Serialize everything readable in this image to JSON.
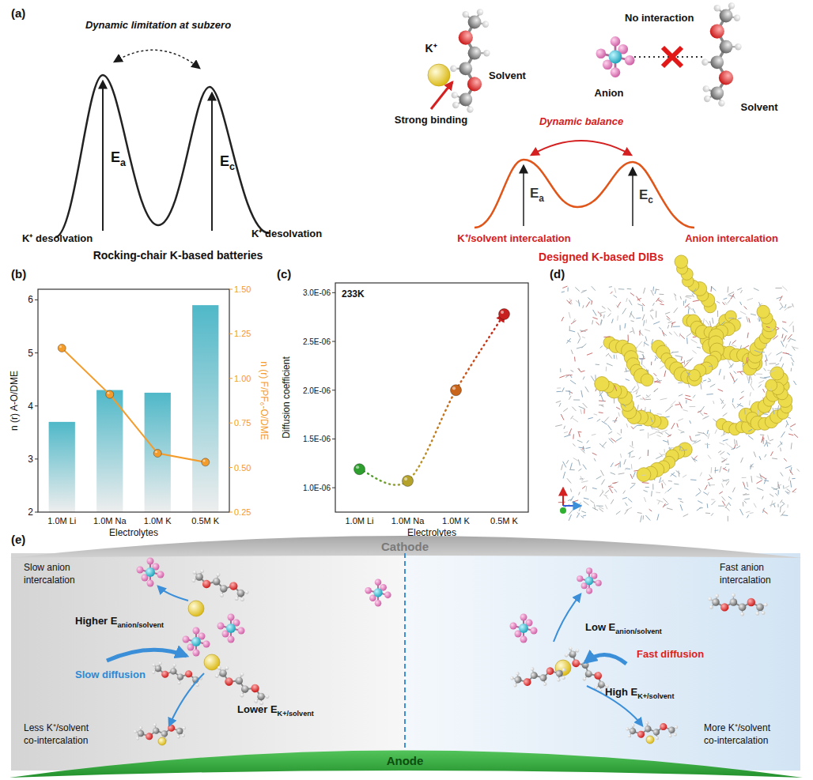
{
  "panels": {
    "a": {
      "label": "(a)",
      "rocking_chair": {
        "caption": "Dynamic limitation at subzero",
        "barrier_anode": {
          "symbol": "E",
          "sub": "a"
        },
        "barrier_cathode": {
          "symbol": "E",
          "sub": "c"
        },
        "left_state": "K⁺ desolvation",
        "right_state": "K⁺ desolvation",
        "title": "Rocking-chair K-based batteries"
      },
      "dib": {
        "cation": "K⁺",
        "solvent_left": "Solvent",
        "binding": "Strong binding",
        "no_interaction": "No interaction",
        "anion": "Anion",
        "solvent_right": "Solvent",
        "balance": "Dynamic balance",
        "barrier_anode": {
          "symbol": "E",
          "sub": "a"
        },
        "barrier_cathode": {
          "symbol": "E",
          "sub": "c"
        },
        "left_state": "K⁺/solvent intercalation",
        "right_state": "Anion intercalation",
        "title": "Designed K-based DIBs"
      }
    },
    "b": {
      "label": "(b)"
    },
    "c": {
      "label": "(c)"
    },
    "d": {
      "label": "(d)"
    },
    "e": {
      "label": "(e)",
      "cathode": "Cathode",
      "anode": "Anode",
      "left": {
        "anion_rate": [
          "Slow anion",
          "intercalation"
        ],
        "anion_energy": {
          "prefix": "Higher E",
          "sub": "anion/solvent"
        },
        "diffusion": "Slow diffusion",
        "cation_energy": {
          "prefix": "Lower E",
          "sub": "K+/solvent"
        },
        "co_intercalation": [
          "Less K⁺/solvent",
          "co-intercalation"
        ]
      },
      "right": {
        "anion_rate": [
          "Fast anion",
          "intercalation"
        ],
        "anion_energy": {
          "prefix": "Low E",
          "sub": "anion/solvent"
        },
        "diffusion": "Fast diffusion",
        "cation_energy": {
          "prefix": "High E",
          "sub": "K+/solvent"
        },
        "co_intercalation": [
          "More K⁺/solvent",
          "co-intercalation"
        ]
      }
    }
  },
  "chart_data": [
    {
      "type": "bar",
      "x_label": "Electrolytes",
      "y_label": "n (r) A-O/DME",
      "y2_label": "n (r) F/PF₆-O/DME",
      "categories": [
        "1.0M Li",
        "1.0M Na",
        "1.0M K",
        "0.5M K"
      ],
      "ylim": [
        2,
        6.2
      ],
      "yticks": [
        2,
        3,
        4,
        5,
        6
      ],
      "y2lim": [
        0.25,
        1.5
      ],
      "y2ticks": [
        {
          "value": 0.25,
          "label": "0.25"
        },
        {
          "value": 0.5,
          "label": "0.50"
        },
        {
          "value": 0.75,
          "label": "0.75"
        },
        {
          "value": 1,
          "label": "1.00"
        },
        {
          "value": 1.25,
          "label": "1.25"
        },
        {
          "value": 1.5,
          "label": "1.50"
        }
      ],
      "series": [
        {
          "type": "bar",
          "color": "#4fb8c8",
          "values": [
            3.7,
            4.3,
            4.25,
            5.9
          ]
        },
        {
          "type": "line",
          "axis": "y2",
          "color": "#f39c2c",
          "marker": "circle",
          "values": [
            1.17,
            0.91,
            0.58,
            0.53
          ]
        }
      ]
    },
    {
      "type": "line",
      "x_label": "Electrolytes",
      "y_label": "Diffusion coefficient",
      "annotation": "233K",
      "categories": [
        "1.0M Li",
        "1.0M Na",
        "1.0M K",
        "0.5M K"
      ],
      "ylim": [
        7.5e-07,
        3.1e-06
      ],
      "yticks": [
        {
          "value": 1e-06,
          "label": "1.0E-06"
        },
        {
          "value": 1.5e-06,
          "label": "1.5E-06"
        },
        {
          "value": 2e-06,
          "label": "2.0E-06"
        },
        {
          "value": 2.5e-06,
          "label": "2.5E-06"
        },
        {
          "value": 3e-06,
          "label": "3.0E-06"
        }
      ],
      "series": [
        {
          "values": [
            1.19e-06,
            1.07e-06,
            2e-06,
            2.78e-06
          ],
          "line_style": "dotted",
          "marker": "circle",
          "colors": [
            "#2e9e2e",
            "#b5a22a",
            "#c8651b",
            "#c8201e"
          ]
        }
      ]
    }
  ]
}
